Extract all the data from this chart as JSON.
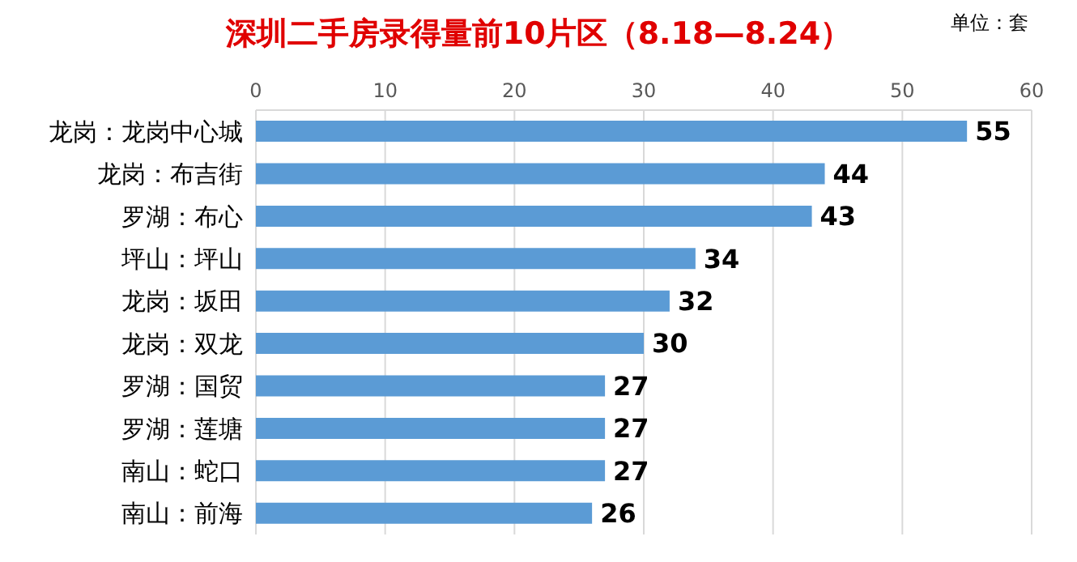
{
  "chart_data": {
    "type": "bar",
    "orientation": "horizontal",
    "title": "深圳二手房录得量前10片区（8.18—8.24）",
    "annotations": [
      "单位：套"
    ],
    "categories": [
      "龙岗：龙岗中心城",
      "龙岗：布吉街",
      "罗湖：布心",
      "坪山：坪山",
      "龙岗：坂田",
      "龙岗：双龙",
      "罗湖：国贸",
      "罗湖：莲塘",
      "南山：蛇口",
      "南山：前海"
    ],
    "values": [
      55,
      44,
      43,
      34,
      32,
      30,
      27,
      27,
      27,
      26
    ],
    "color": "#5b9bd5",
    "xlim": [
      0,
      60
    ],
    "xticks": [
      0,
      10,
      20,
      30,
      40,
      50,
      60
    ],
    "grid": "x",
    "data_labels": true
  }
}
